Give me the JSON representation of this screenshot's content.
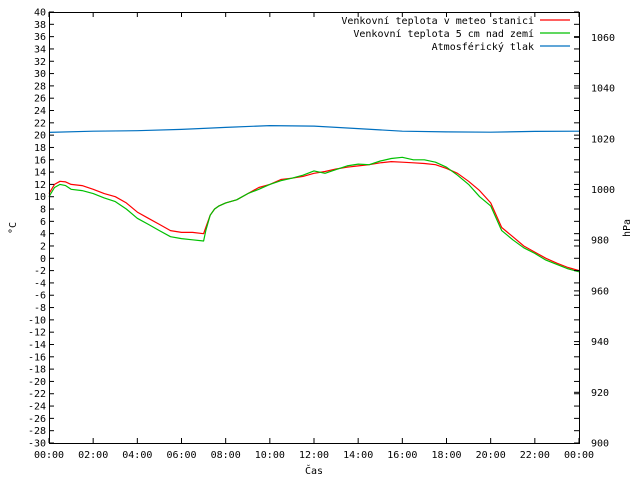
{
  "chart_data": {
    "type": "line",
    "xlabel": "Čas",
    "ylabel": "°C",
    "y2label": "hPa",
    "ylim": [
      -30,
      40
    ],
    "y2lim": [
      900,
      1070
    ],
    "xlim": [
      0,
      24
    ],
    "x_tick_labels": [
      "00:00",
      "02:00",
      "04:00",
      "06:00",
      "08:00",
      "10:00",
      "12:00",
      "14:00",
      "16:00",
      "18:00",
      "20:00",
      "22:00",
      "00:00"
    ],
    "y_ticks": [
      40,
      38,
      36,
      34,
      32,
      30,
      28,
      26,
      24,
      22,
      20,
      18,
      16,
      14,
      12,
      10,
      8,
      6,
      4,
      2,
      0,
      -2,
      -4,
      -6,
      -8,
      -10,
      -12,
      -14,
      -16,
      -18,
      -20,
      -22,
      -24,
      -26,
      -28,
      -30
    ],
    "y2_ticks": [
      900,
      920,
      940,
      960,
      980,
      1000,
      1020,
      1040,
      1060
    ],
    "grid": false,
    "legend_position": "top-right",
    "series": [
      {
        "name": "Venkovní teplota v meteo stanici",
        "axis": "left",
        "color": "#ff0000",
        "x": [
          0,
          0.25,
          0.5,
          0.75,
          1,
          1.5,
          2,
          2.5,
          3,
          3.5,
          4,
          4.5,
          5,
          5.5,
          6,
          6.5,
          7,
          7.1,
          7.3,
          7.5,
          7.7,
          8,
          8.5,
          9,
          9.5,
          10,
          10.5,
          11,
          11.5,
          12,
          12.5,
          13,
          13.5,
          14,
          14.5,
          15,
          15.5,
          16,
          16.5,
          17,
          17.5,
          18,
          18.5,
          19,
          19.5,
          20,
          20.5,
          21,
          21.5,
          22,
          22.5,
          23,
          23.5,
          24
        ],
        "values": [
          10.5,
          12,
          12.5,
          12.4,
          12,
          11.8,
          11.2,
          10.5,
          10,
          9,
          7.5,
          6.5,
          5.5,
          4.5,
          4.2,
          4.2,
          4,
          5,
          7,
          8,
          8.5,
          9,
          9.5,
          10.5,
          11.5,
          12,
          12.8,
          13,
          13.3,
          13.8,
          14.1,
          14.5,
          14.8,
          15,
          15.2,
          15.5,
          15.7,
          15.6,
          15.5,
          15.4,
          15.2,
          14.6,
          13.8,
          12.5,
          11,
          9,
          5,
          3.5,
          2,
          1,
          0,
          -0.8,
          -1.5,
          -2
        ]
      },
      {
        "name": "Venkovní teplota 5 cm nad zemí",
        "axis": "left",
        "color": "#00c000",
        "x": [
          0,
          0.25,
          0.5,
          0.75,
          1,
          1.5,
          2,
          2.5,
          3,
          3.5,
          4,
          4.5,
          5,
          5.5,
          6,
          6.5,
          7,
          7.1,
          7.3,
          7.5,
          7.7,
          8,
          8.5,
          9,
          9.5,
          10,
          10.5,
          11,
          11.5,
          12,
          12.5,
          13,
          13.5,
          14,
          14.5,
          15,
          15.5,
          16,
          16.5,
          17,
          17.5,
          18,
          18.5,
          19,
          19.5,
          20,
          20.5,
          21,
          21.5,
          22,
          22.5,
          23,
          23.5,
          24
        ],
        "values": [
          10,
          11.5,
          12,
          11.8,
          11.2,
          11,
          10.5,
          9.8,
          9.2,
          8,
          6.5,
          5.5,
          4.5,
          3.5,
          3.2,
          3,
          2.8,
          4.5,
          7,
          8,
          8.5,
          9,
          9.5,
          10.5,
          11.2,
          12,
          12.6,
          13,
          13.5,
          14.2,
          13.8,
          14.4,
          15,
          15.3,
          15.2,
          15.8,
          16.2,
          16.4,
          16,
          16,
          15.6,
          14.8,
          13.5,
          12,
          10,
          8.5,
          4.5,
          3,
          1.7,
          0.8,
          -0.3,
          -1,
          -1.7,
          -2.2
        ]
      },
      {
        "name": "Atmosférický tlak",
        "axis": "right",
        "color": "#0070c0",
        "x": [
          0,
          2,
          4,
          6,
          8,
          10,
          12,
          14,
          16,
          18,
          20,
          22,
          24
        ],
        "values": [
          1022.5,
          1023,
          1023.2,
          1023.7,
          1024.5,
          1025.2,
          1025,
          1024,
          1023,
          1022.7,
          1022.6,
          1022.9,
          1023
        ]
      }
    ]
  }
}
